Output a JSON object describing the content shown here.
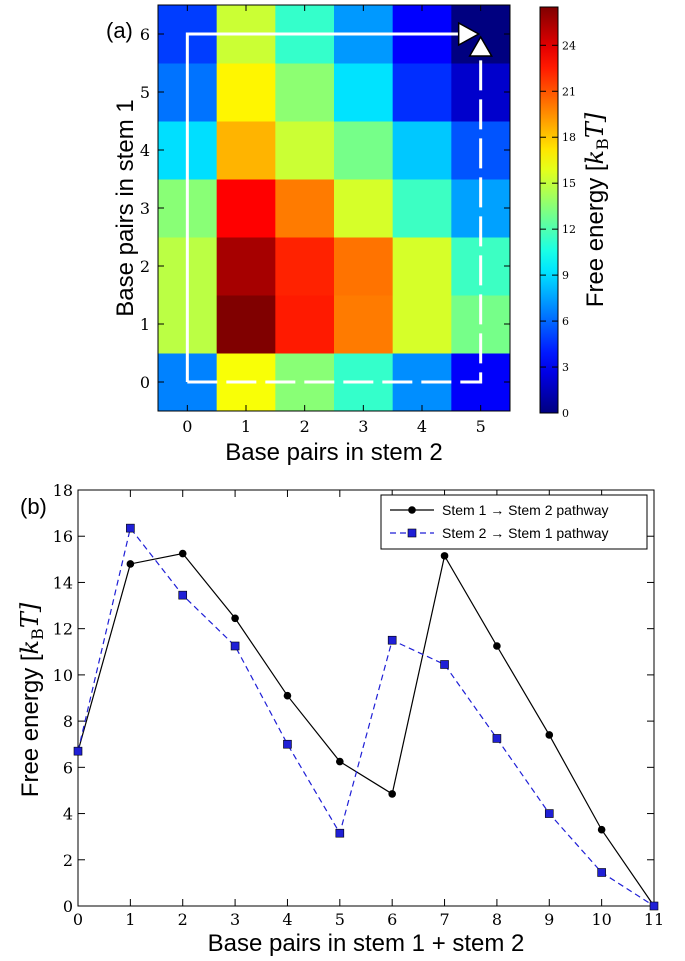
{
  "panel_a": {
    "label": "(a)",
    "xlabel": "Base pairs in stem 2",
    "ylabel": "Base pairs in stem 1",
    "colorbar_label": "Free energy [",
    "colorbar_unit_k": "k",
    "colorbar_unit_sub": "B",
    "colorbar_unit_t": "T]"
  },
  "panel_b": {
    "label": "(b)",
    "xlabel": "Base pairs in stem 1 + stem 2",
    "ylabel": "Free energy [",
    "ylabel_k": "k",
    "ylabel_sub": "B",
    "ylabel_t": "T]"
  },
  "chart_data": [
    {
      "type": "heatmap",
      "x_categories": [
        "0",
        "1",
        "2",
        "3",
        "4",
        "5"
      ],
      "y_categories": [
        "0",
        "1",
        "2",
        "3",
        "4",
        "5",
        "6"
      ],
      "values": [
        [
          6.7,
          16.4,
          13.5,
          11.3,
          7.0,
          3.2
        ],
        [
          14.8,
          26.5,
          22.5,
          20.0,
          15.5,
          13.0
        ],
        [
          14.8,
          25.5,
          22.3,
          20.2,
          15.5,
          11.5
        ],
        [
          13.5,
          23.2,
          20.0,
          15.5,
          11.5,
          7.5
        ],
        [
          9.1,
          18.5,
          15.2,
          13.0,
          8.5,
          5.5
        ],
        [
          6.3,
          16.8,
          13.6,
          9.2,
          4.5,
          2.0
        ],
        [
          4.9,
          15.2,
          11.3,
          7.3,
          3.3,
          0.0
        ]
      ],
      "colorbar": {
        "range": [
          0,
          26.5
        ],
        "ticks": [
          0,
          3,
          6,
          9,
          12,
          15,
          18,
          21,
          24
        ]
      },
      "colormap": "jet",
      "path_stem1_first": [
        [
          0,
          0
        ],
        [
          0,
          6
        ],
        [
          5,
          6
        ]
      ],
      "path_stem2_first": [
        [
          0,
          0
        ],
        [
          5,
          0
        ],
        [
          5,
          6
        ]
      ],
      "path_colors": {
        "stem1_first": "#ffffff",
        "stem2_first": "#ffffff"
      }
    },
    {
      "type": "line",
      "x": [
        0,
        1,
        2,
        3,
        4,
        5,
        6,
        7,
        8,
        9,
        10,
        11
      ],
      "xlim": [
        0,
        11
      ],
      "ylim": [
        0,
        18
      ],
      "xticks": [
        0,
        1,
        2,
        3,
        4,
        5,
        6,
        7,
        8,
        9,
        10,
        11
      ],
      "yticks": [
        0,
        2,
        4,
        6,
        8,
        10,
        12,
        14,
        16,
        18
      ],
      "legend_position": "top-right",
      "series": [
        {
          "name": "Stem 1 → Stem 2 pathway",
          "values": [
            6.7,
            14.8,
            15.25,
            12.45,
            9.1,
            6.25,
            4.85,
            15.15,
            11.25,
            7.4,
            3.3,
            0.0
          ],
          "color": "#000000",
          "marker": "circle",
          "line": "solid"
        },
        {
          "name": "Stem 2 → Stem 1 pathway",
          "values": [
            6.7,
            16.35,
            13.45,
            11.25,
            7.0,
            3.15,
            11.5,
            10.45,
            7.25,
            4.0,
            1.45,
            0.0
          ],
          "color": "#1f1fd6",
          "marker": "square",
          "line": "dashed"
        }
      ]
    }
  ]
}
